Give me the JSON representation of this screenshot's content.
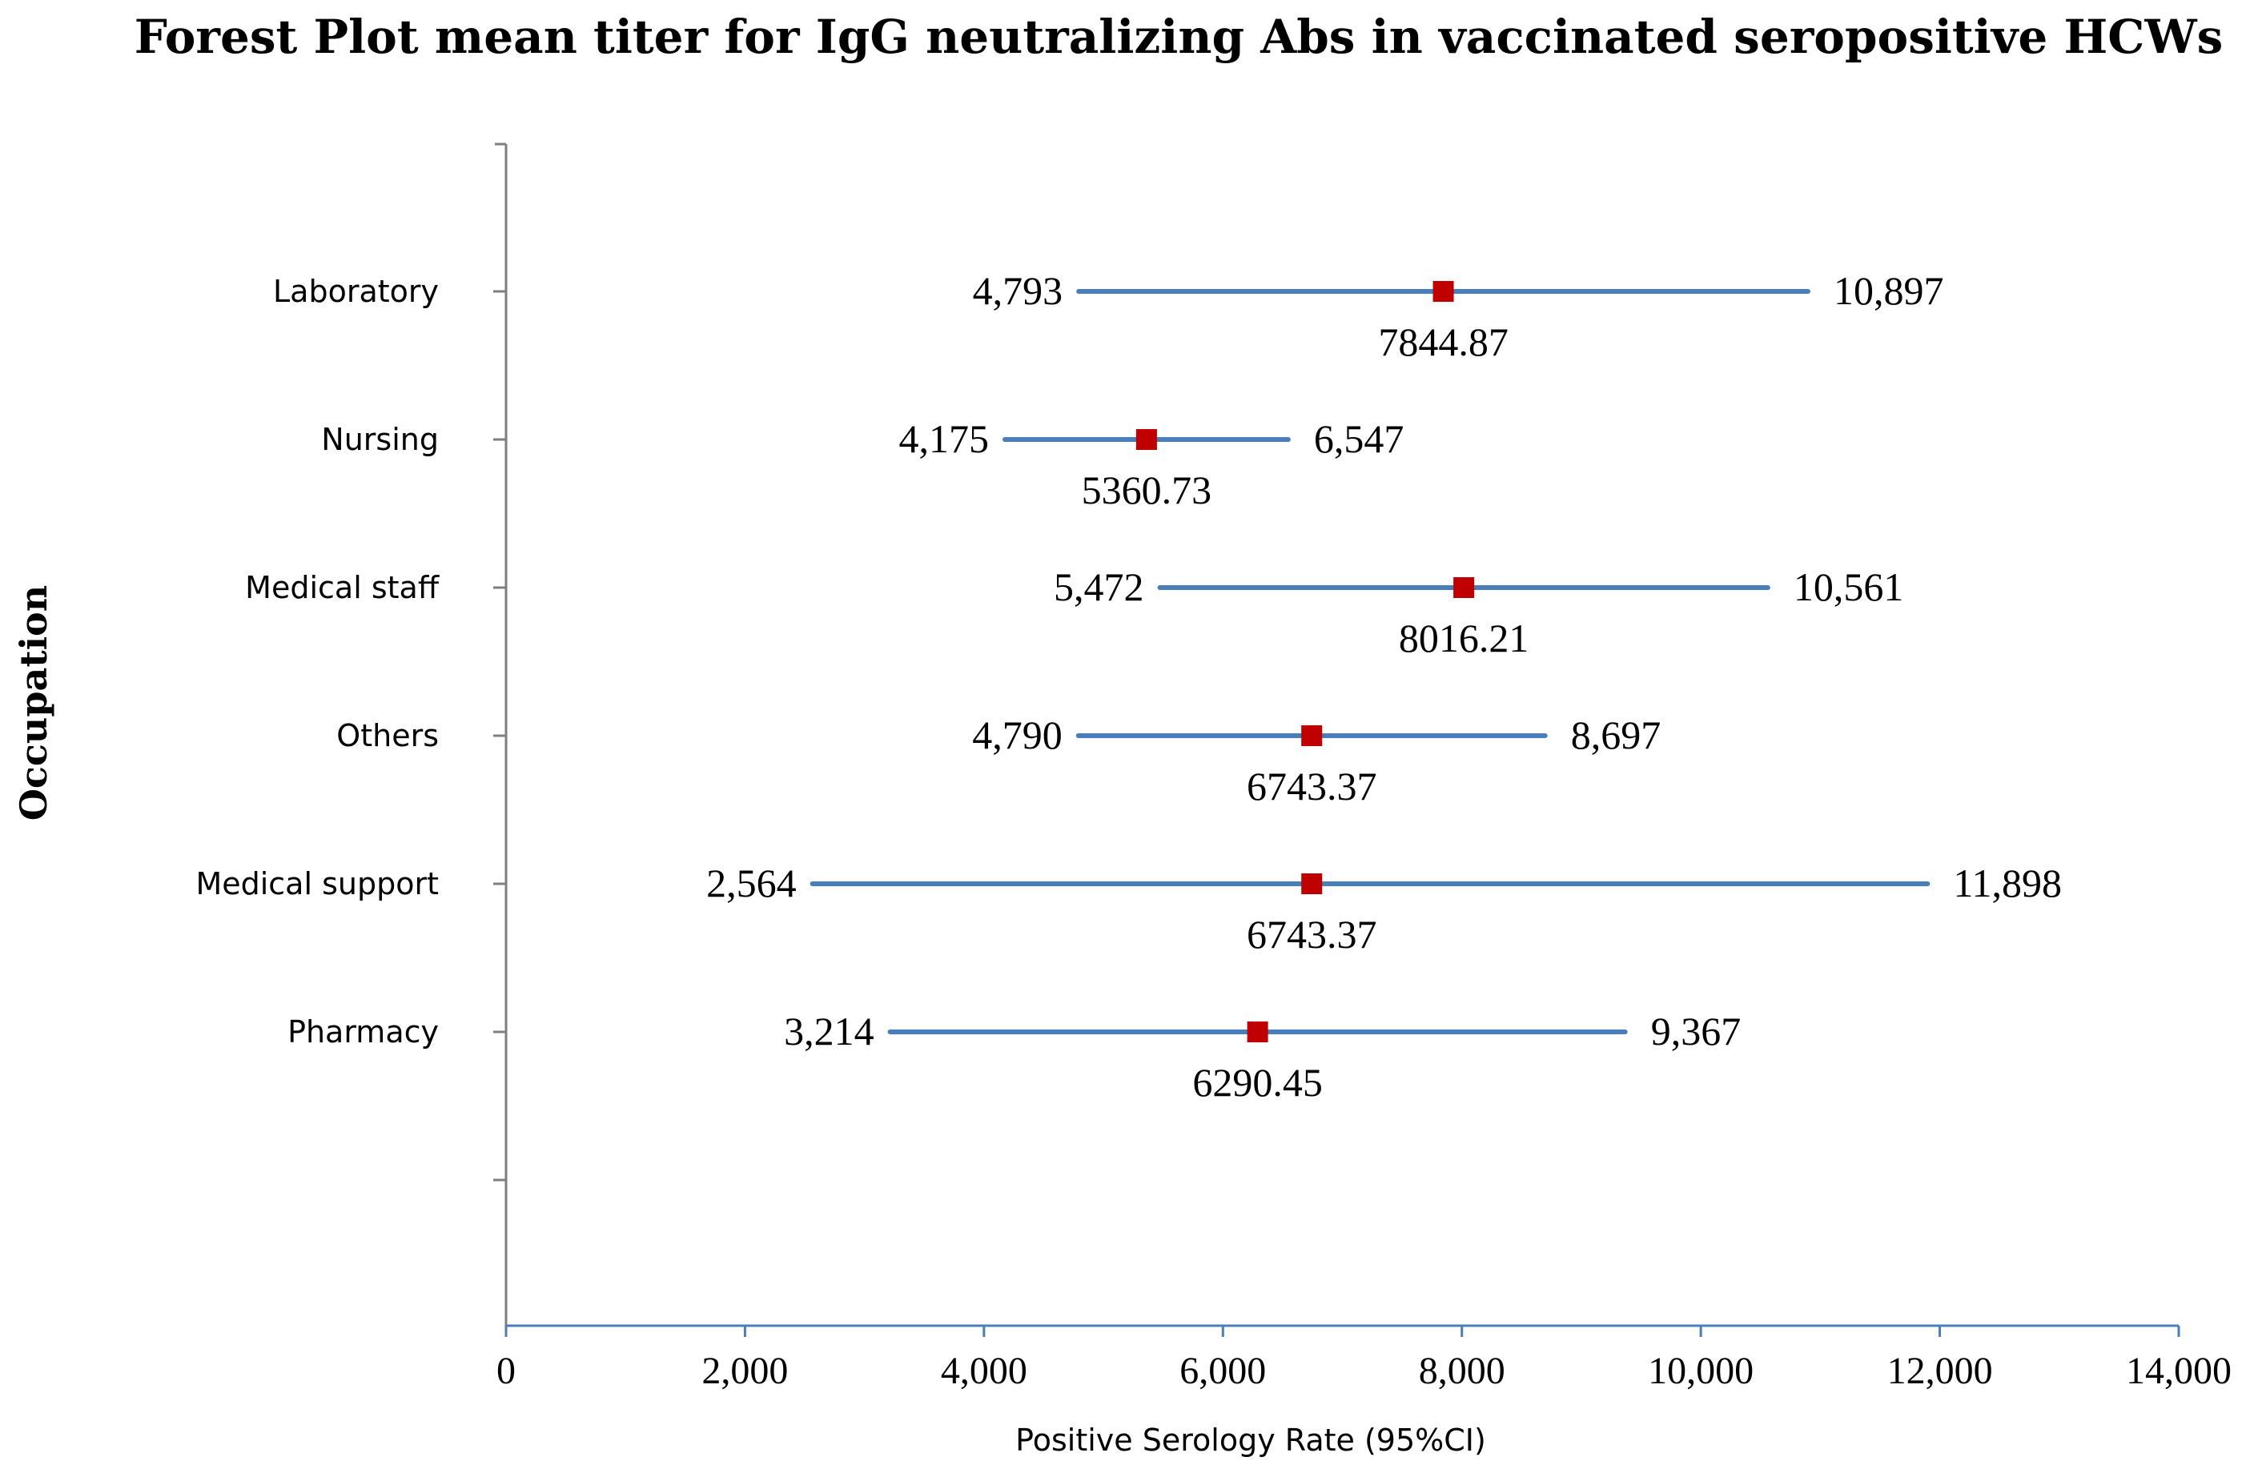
{
  "chart_data": {
    "type": "forest",
    "title": "Forest Plot mean titer for IgG neutralizing Abs in vaccinated seropositive HCWs",
    "xlabel": "Positive Serology Rate (95%CI)",
    "ylabel": "Occupation",
    "xlim": [
      0,
      14000
    ],
    "xticks": [
      0,
      2000,
      4000,
      6000,
      8000,
      10000,
      12000,
      14000
    ],
    "xtick_labels": [
      "0",
      "2,000",
      "4,000",
      "6,000",
      "8,000",
      "10,000",
      "12,000",
      "14,000"
    ],
    "categories": [
      "Laboratory",
      "Nursing",
      "Medical staff",
      "Others",
      "Medical support",
      "Pharmacy"
    ],
    "mean": [
      7844.87,
      5360.73,
      8016.21,
      6743.37,
      6743.37,
      6290.45
    ],
    "mean_labels": [
      "7844.87",
      "5360.73",
      "8016.21",
      "6743.37",
      "6743.37",
      "6290.45"
    ],
    "lower": [
      4793,
      4175,
      5472,
      4790,
      2564,
      3214
    ],
    "lower_labels": [
      "4,793",
      "4,175",
      "5,472",
      "4,790",
      "2,564",
      "3,214"
    ],
    "upper": [
      10897,
      6547,
      10561,
      8697,
      11898,
      9367
    ],
    "upper_labels": [
      "10,897",
      "6,547",
      "10,561",
      "8,697",
      "11,898",
      "9,367"
    ],
    "colors": {
      "interval": "#4a7ebb",
      "marker": "#c00000",
      "axis": "#4a7ebb"
    }
  }
}
